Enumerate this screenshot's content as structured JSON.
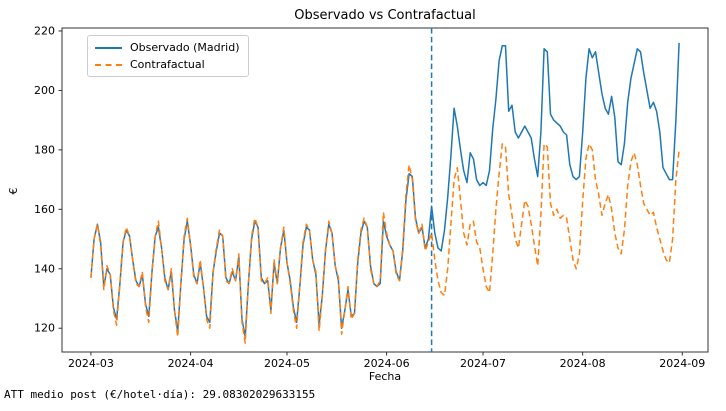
{
  "figure": {
    "background": "#ffffff"
  },
  "footer": {
    "att_text": "ATT medio post (€/hotel·día): 29.08302029633155"
  },
  "chart_data": {
    "type": "line",
    "title": "Observado vs Contrafactual",
    "xlabel": "Fecha",
    "ylabel": "€",
    "grid": false,
    "legend_position": "upper left",
    "x_start_date": "2024-03-01",
    "x_unit": "day_index_from_2024-03-01",
    "xlim_days": [
      -9,
      192
    ],
    "ylim": [
      112,
      221
    ],
    "x_tick_days": [
      0,
      31,
      61,
      92,
      122,
      153,
      184
    ],
    "x_tick_labels": [
      "2024-03",
      "2024-04",
      "2024-05",
      "2024-06",
      "2024-07",
      "2024-08",
      "2024-09"
    ],
    "y_ticks": [
      120,
      140,
      160,
      180,
      200,
      220
    ],
    "axis_color": "#333333",
    "intervention_line": {
      "day": 106,
      "date": "2024-06-15",
      "color": "#1f77b4",
      "style": "dashed"
    },
    "series": [
      {
        "name": "Observado (Madrid)",
        "color": "#1f77b4",
        "style": "solid",
        "values": [
          137,
          150,
          155,
          149,
          134,
          140,
          138,
          127,
          123,
          135,
          149,
          153,
          151,
          143,
          136,
          134,
          138,
          128,
          124,
          139,
          151,
          154,
          147,
          137,
          133,
          139,
          126,
          119,
          135,
          150,
          156,
          148,
          138,
          135,
          142,
          134,
          124,
          122,
          139,
          146,
          152,
          151,
          137,
          135,
          139,
          136,
          144,
          123,
          117,
          135,
          150,
          156,
          154,
          137,
          135,
          136,
          126,
          142,
          135,
          147,
          153,
          142,
          136,
          127,
          122,
          134,
          148,
          154,
          153,
          143,
          138,
          121,
          131,
          146,
          155,
          152,
          141,
          136,
          120,
          126,
          133,
          124,
          125,
          142,
          152,
          156,
          154,
          141,
          135,
          134,
          135,
          156,
          151,
          148,
          146,
          139,
          136,
          146,
          163,
          172,
          171,
          157,
          152,
          154,
          147,
          150,
          161,
          152,
          147,
          146,
          153,
          164,
          178,
          194,
          188,
          180,
          173,
          169,
          179,
          177,
          170,
          168,
          169,
          168,
          173,
          187,
          197,
          210,
          215,
          215,
          193,
          195,
          186,
          184,
          186,
          188,
          186,
          184,
          177,
          171,
          186,
          214,
          213,
          192,
          190,
          189,
          188,
          186,
          185,
          175,
          171,
          170,
          171,
          186,
          204,
          214,
          211,
          213,
          206,
          199,
          194,
          192,
          198,
          191,
          176,
          175,
          182,
          196,
          204,
          209,
          214,
          213,
          206,
          200,
          194,
          196,
          193,
          186,
          174,
          172,
          170,
          170,
          190,
          216
        ]
      },
      {
        "name": "Contrafactual",
        "color": "#ff7f0e",
        "style": "dashed",
        "values": [
          137,
          150,
          155,
          148,
          133,
          141,
          138,
          126,
          121,
          135,
          149,
          154,
          151,
          143,
          135,
          134,
          139,
          127,
          122,
          139,
          151,
          156,
          147,
          136,
          133,
          140,
          126,
          117,
          135,
          151,
          157,
          148,
          137,
          135,
          143,
          134,
          123,
          120,
          139,
          147,
          153,
          151,
          136,
          135,
          140,
          136,
          145,
          122,
          115,
          135,
          151,
          157,
          154,
          136,
          135,
          137,
          125,
          143,
          135,
          147,
          154,
          142,
          135,
          126,
          120,
          134,
          149,
          155,
          153,
          143,
          139,
          119,
          131,
          146,
          156,
          152,
          141,
          137,
          118,
          126,
          134,
          123,
          125,
          143,
          153,
          157,
          154,
          140,
          135,
          134,
          136,
          159,
          152,
          148,
          146,
          138,
          136,
          147,
          165,
          175,
          170,
          156,
          152,
          155,
          146,
          149,
          152,
          143,
          136,
          132,
          131,
          140,
          155,
          170,
          174,
          163,
          152,
          148,
          155,
          156,
          149,
          147,
          140,
          134,
          132,
          145,
          160,
          172,
          182,
          181,
          165,
          158,
          150,
          147,
          155,
          163,
          161,
          155,
          148,
          141,
          158,
          182,
          181,
          162,
          158,
          160,
          157,
          158,
          157,
          150,
          143,
          140,
          145,
          163,
          177,
          182,
          180,
          170,
          165,
          158,
          162,
          165,
          160,
          152,
          147,
          145,
          153,
          168,
          176,
          179,
          175,
          168,
          162,
          160,
          158,
          159,
          154,
          150,
          146,
          143,
          142,
          150,
          170,
          180
        ]
      }
    ],
    "att_mean_post": 29.08302029633155
  }
}
